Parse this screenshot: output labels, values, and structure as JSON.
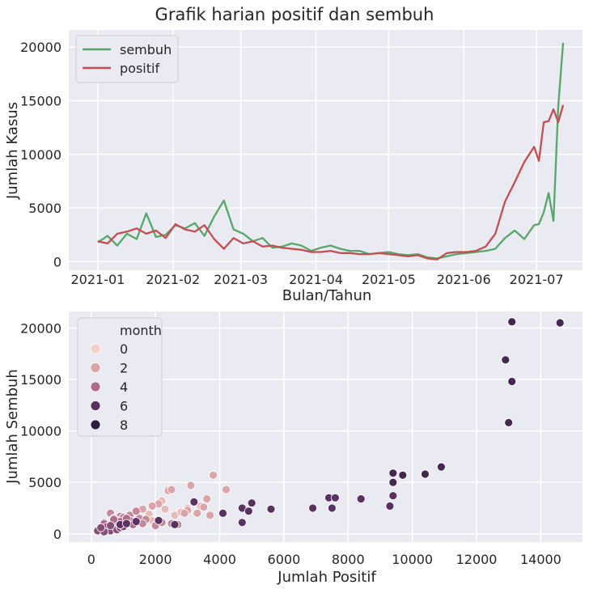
{
  "figure": {
    "title": "Grafik harian positif dan sembuh"
  },
  "chart_data": [
    {
      "type": "line",
      "title": "",
      "xlabel": "Bulan/Tahun",
      "ylabel": "Jumlah Kasus",
      "x_ticks": [
        "2021-01",
        "2021-02",
        "2021-03",
        "2021-04",
        "2021-05",
        "2021-06",
        "2021-07"
      ],
      "y_ticks": [
        0,
        5000,
        10000,
        15000,
        20000
      ],
      "x_range": [
        "2020-12-20",
        "2021-07-20"
      ],
      "ylim": [
        -800,
        21600
      ],
      "grid": true,
      "legend": "top-left",
      "x": [
        "2021-01-01",
        "2021-01-05",
        "2021-01-09",
        "2021-01-13",
        "2021-01-17",
        "2021-01-21",
        "2021-01-25",
        "2021-01-29",
        "2021-02-02",
        "2021-02-06",
        "2021-02-10",
        "2021-02-14",
        "2021-02-18",
        "2021-02-22",
        "2021-02-26",
        "2021-03-02",
        "2021-03-06",
        "2021-03-10",
        "2021-03-14",
        "2021-03-18",
        "2021-03-22",
        "2021-03-26",
        "2021-03-30",
        "2021-04-03",
        "2021-04-07",
        "2021-04-11",
        "2021-04-15",
        "2021-04-19",
        "2021-04-23",
        "2021-04-27",
        "2021-05-01",
        "2021-05-05",
        "2021-05-09",
        "2021-05-13",
        "2021-05-17",
        "2021-05-21",
        "2021-05-25",
        "2021-05-29",
        "2021-06-02",
        "2021-06-06",
        "2021-06-10",
        "2021-06-14",
        "2021-06-18",
        "2021-06-22",
        "2021-06-26",
        "2021-06-30",
        "2021-07-02",
        "2021-07-04",
        "2021-07-06",
        "2021-07-08",
        "2021-07-10",
        "2021-07-12"
      ],
      "series": [
        {
          "name": "sembuh",
          "color": "#55a868",
          "values": [
            1800,
            2400,
            1500,
            2600,
            2100,
            4500,
            2300,
            2500,
            3400,
            3100,
            3600,
            2400,
            4200,
            5700,
            3000,
            2600,
            1900,
            2200,
            1300,
            1400,
            1700,
            1500,
            1000,
            1300,
            1500,
            1200,
            1000,
            1000,
            700,
            800,
            900,
            700,
            600,
            700,
            400,
            300,
            500,
            700,
            800,
            900,
            1000,
            1200,
            2200,
            2900,
            2100,
            3400,
            3500,
            4600,
            6400,
            3800,
            14500,
            20400
          ]
        },
        {
          "name": "positif",
          "color": "#c44e52",
          "values": [
            1900,
            1700,
            2600,
            2800,
            3100,
            2600,
            2900,
            2200,
            3500,
            3000,
            2800,
            3400,
            2100,
            1200,
            2200,
            1700,
            1900,
            1400,
            1500,
            1300,
            1200,
            1100,
            900,
            900,
            1000,
            800,
            800,
            700,
            700,
            800,
            700,
            600,
            500,
            600,
            300,
            200,
            800,
            900,
            900,
            1000,
            1400,
            2600,
            5600,
            7400,
            9300,
            10700,
            9400,
            13000,
            13100,
            14200,
            13000,
            14600
          ]
        }
      ]
    },
    {
      "type": "scatter",
      "title": "",
      "xlabel": "Jumlah Positif",
      "ylabel": "Jumlah Sembuh",
      "x_ticks": [
        0,
        2000,
        4000,
        6000,
        8000,
        10000,
        12000,
        14000
      ],
      "y_ticks": [
        0,
        5000,
        10000,
        15000,
        20000
      ],
      "xlim": [
        -700,
        15300
      ],
      "ylim": [
        -800,
        21600
      ],
      "grid": true,
      "legend": "top-left",
      "legend_title": "month",
      "legend_entries": [
        {
          "label": "0",
          "color": "#f2cfc7"
        },
        {
          "label": "2",
          "color": "#dba4a8"
        },
        {
          "label": "4",
          "color": "#ae6b8c"
        },
        {
          "label": "6",
          "color": "#593262"
        },
        {
          "label": "8",
          "color": "#2d1e3e"
        }
      ],
      "points": [
        [
          1800,
          1900,
          1
        ],
        [
          2300,
          2400,
          1
        ],
        [
          2600,
          1800,
          1
        ],
        [
          3000,
          2500,
          1
        ],
        [
          2200,
          3200,
          1
        ],
        [
          3400,
          2700,
          1
        ],
        [
          2800,
          2100,
          1
        ],
        [
          1900,
          1300,
          1
        ],
        [
          2400,
          4200,
          2
        ],
        [
          2500,
          4300,
          2
        ],
        [
          3800,
          5700,
          2
        ],
        [
          3100,
          4700,
          2
        ],
        [
          4200,
          4300,
          2
        ],
        [
          3600,
          3400,
          2
        ],
        [
          3500,
          2600,
          2
        ],
        [
          3000,
          2300,
          2
        ],
        [
          3700,
          1800,
          2
        ],
        [
          3300,
          2000,
          2
        ],
        [
          2100,
          2900,
          2
        ],
        [
          1900,
          2700,
          2
        ],
        [
          2900,
          2000,
          2
        ],
        [
          1600,
          2400,
          2
        ],
        [
          1200,
          1800,
          3
        ],
        [
          1500,
          1500,
          3
        ],
        [
          900,
          1700,
          3
        ],
        [
          1400,
          2200,
          3
        ],
        [
          1000,
          1600,
          3
        ],
        [
          600,
          2000,
          3
        ],
        [
          1700,
          1400,
          3
        ],
        [
          1300,
          1200,
          3
        ],
        [
          1100,
          900,
          3
        ],
        [
          800,
          1300,
          3
        ],
        [
          1600,
          1000,
          3
        ],
        [
          2000,
          800,
          3
        ],
        [
          400,
          1100,
          3
        ],
        [
          700,
          1500,
          3
        ],
        [
          2500,
          1000,
          3
        ],
        [
          2700,
          900,
          3
        ],
        [
          2200,
          1100,
          3
        ],
        [
          900,
          1200,
          4
        ],
        [
          700,
          1000,
          4
        ],
        [
          1000,
          800,
          4
        ],
        [
          600,
          900,
          4
        ],
        [
          800,
          700,
          4
        ],
        [
          1200,
          1300,
          4
        ],
        [
          1100,
          1500,
          4
        ],
        [
          500,
          600,
          4
        ],
        [
          400,
          1000,
          4
        ],
        [
          1300,
          900,
          4
        ],
        [
          700,
          1400,
          4
        ],
        [
          500,
          700,
          5
        ],
        [
          700,
          500,
          5
        ],
        [
          600,
          300,
          5
        ],
        [
          300,
          400,
          5
        ],
        [
          200,
          300,
          5
        ],
        [
          800,
          400,
          5
        ],
        [
          900,
          600,
          5
        ],
        [
          400,
          200,
          5
        ],
        [
          1000,
          700,
          5
        ],
        [
          600,
          800,
          5
        ],
        [
          300,
          600,
          5
        ],
        [
          900,
          900,
          6
        ],
        [
          1100,
          1000,
          6
        ],
        [
          1400,
          1200,
          6
        ],
        [
          2100,
          1300,
          6
        ],
        [
          2600,
          900,
          6
        ],
        [
          3200,
          3100,
          6
        ],
        [
          4100,
          2000,
          6
        ],
        [
          4700,
          1100,
          6
        ],
        [
          4700,
          2500,
          6
        ],
        [
          4900,
          2200,
          6
        ],
        [
          5000,
          3000,
          6
        ],
        [
          5600,
          2400,
          6
        ],
        [
          6900,
          2500,
          6
        ],
        [
          7400,
          3500,
          6
        ],
        [
          7500,
          2500,
          6
        ],
        [
          7600,
          3500,
          6
        ],
        [
          8400,
          3400,
          6
        ],
        [
          9300,
          2700,
          6
        ],
        [
          9400,
          3700,
          6
        ],
        [
          9400,
          5000,
          7
        ],
        [
          9400,
          5900,
          7
        ],
        [
          9700,
          5700,
          7
        ],
        [
          10400,
          5800,
          7
        ],
        [
          10900,
          6500,
          7
        ],
        [
          12900,
          16900,
          7
        ],
        [
          13000,
          10800,
          7
        ],
        [
          13100,
          14800,
          7
        ],
        [
          13100,
          20600,
          7
        ],
        [
          14600,
          20500,
          7
        ]
      ]
    }
  ]
}
